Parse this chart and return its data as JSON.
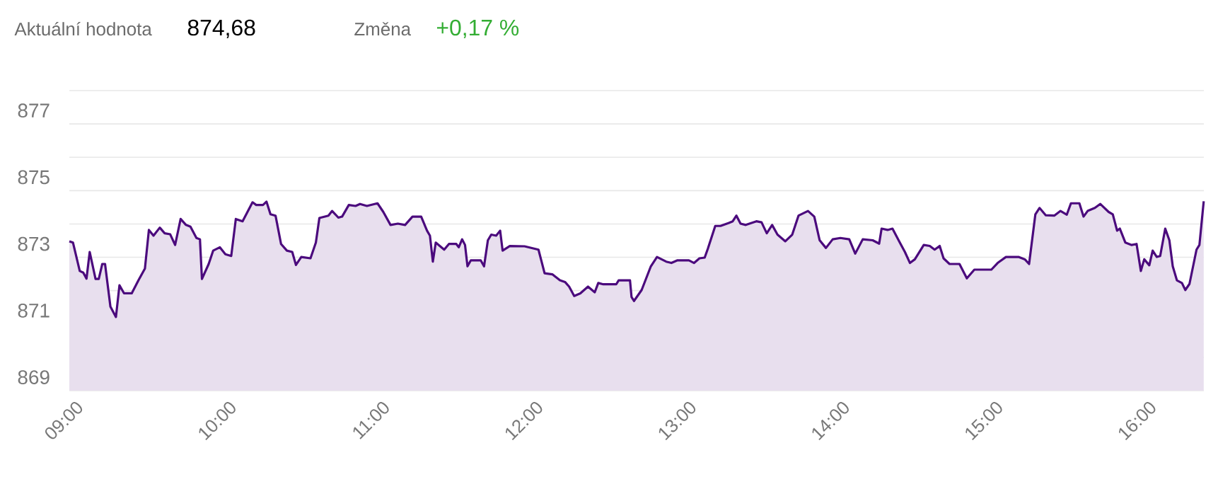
{
  "chart_data": {
    "type": "area",
    "annotations": [
      "Aktuální hodnota",
      "874,68",
      "Změna",
      "+0,17 %"
    ],
    "x": [
      9.0,
      9.024,
      9.068,
      9.091,
      9.112,
      9.133,
      9.171,
      9.192,
      9.215,
      9.233,
      9.268,
      9.304,
      9.327,
      9.357,
      9.407,
      9.451,
      9.493,
      9.519,
      9.549,
      9.59,
      9.622,
      9.658,
      9.69,
      9.726,
      9.761,
      9.79,
      9.829,
      9.852,
      9.865,
      9.909,
      9.938,
      9.982,
      10.018,
      10.056,
      10.086,
      10.13,
      10.195,
      10.219,
      10.263,
      10.286,
      10.312,
      10.345,
      10.381,
      10.419,
      10.454,
      10.478,
      10.513,
      10.573,
      10.608,
      10.631,
      10.69,
      10.714,
      10.755,
      10.779,
      10.823,
      10.867,
      10.896,
      10.941,
      11.01,
      11.048,
      11.095,
      11.143,
      11.19,
      11.238,
      11.295,
      11.333,
      11.352,
      11.371,
      11.39,
      11.445,
      11.476,
      11.524,
      11.54,
      11.562,
      11.581,
      11.597,
      11.619,
      11.683,
      11.705,
      11.73,
      11.752,
      11.784,
      11.81,
      11.826,
      11.873,
      11.969,
      12.06,
      12.1,
      12.15,
      12.2,
      12.233,
      12.26,
      12.293,
      12.333,
      12.383,
      12.427,
      12.45,
      12.483,
      12.567,
      12.583,
      12.657,
      12.667,
      12.683,
      12.733,
      12.793,
      12.833,
      12.893,
      12.927,
      12.967,
      13.041,
      13.075,
      13.11,
      13.144,
      13.165,
      13.213,
      13.247,
      13.302,
      13.327,
      13.351,
      13.378,
      13.412,
      13.481,
      13.515,
      13.549,
      13.584,
      13.619,
      13.67,
      13.715,
      13.756,
      13.818,
      13.859,
      13.894,
      13.935,
      13.979,
      14.029,
      14.087,
      14.126,
      14.175,
      14.24,
      14.282,
      14.298,
      14.337,
      14.369,
      14.417,
      14.45,
      14.483,
      14.515,
      14.573,
      14.612,
      14.644,
      14.677,
      14.702,
      14.741,
      14.806,
      14.854,
      14.903,
      15.014,
      15.055,
      15.109,
      15.191,
      15.232,
      15.26,
      15.301,
      15.328,
      15.369,
      15.424,
      15.465,
      15.506,
      15.533,
      15.588,
      15.615,
      15.642,
      15.689,
      15.724,
      15.779,
      15.806,
      15.834,
      15.852,
      15.888,
      15.929,
      15.961,
      15.989,
      16.011,
      16.044,
      16.066,
      16.093,
      16.115,
      16.148,
      16.175,
      16.197,
      16.224,
      16.257,
      16.279,
      16.306,
      16.352,
      16.371,
      16.399
    ],
    "series": [
      {
        "color": "#4b0a7d",
        "values": [
          873.48,
          873.44,
          872.59,
          872.54,
          872.36,
          873.16,
          872.35,
          872.35,
          872.8,
          872.8,
          871.52,
          871.21,
          872.16,
          871.92,
          871.92,
          872.31,
          872.66,
          873.82,
          873.65,
          873.89,
          873.72,
          873.69,
          873.37,
          874.15,
          873.97,
          873.92,
          873.58,
          873.54,
          872.35,
          872.8,
          873.2,
          873.3,
          873.09,
          873.04,
          874.15,
          874.08,
          874.65,
          874.57,
          874.57,
          874.67,
          874.29,
          874.25,
          873.4,
          873.2,
          873.16,
          872.77,
          873.01,
          872.97,
          873.44,
          874.18,
          874.25,
          874.39,
          874.19,
          874.22,
          874.57,
          874.54,
          874.6,
          874.54,
          874.62,
          874.36,
          873.97,
          874.01,
          873.97,
          874.22,
          874.22,
          873.8,
          873.65,
          872.87,
          873.44,
          873.23,
          873.4,
          873.4,
          873.3,
          873.54,
          873.37,
          872.73,
          872.91,
          872.91,
          872.73,
          873.51,
          873.68,
          873.65,
          873.8,
          873.2,
          873.34,
          873.33,
          873.23,
          872.52,
          872.49,
          872.31,
          872.26,
          872.12,
          871.84,
          871.92,
          872.12,
          871.95,
          872.23,
          872.19,
          872.19,
          872.31,
          872.31,
          871.81,
          871.69,
          872.02,
          872.73,
          873.01,
          872.87,
          872.83,
          872.91,
          872.91,
          872.83,
          872.97,
          872.99,
          873.26,
          873.94,
          873.94,
          874.03,
          874.08,
          874.25,
          874.01,
          873.97,
          874.08,
          874.05,
          873.72,
          873.97,
          873.68,
          873.48,
          873.68,
          874.25,
          874.39,
          874.22,
          873.51,
          873.28,
          873.54,
          873.58,
          873.54,
          873.11,
          873.54,
          873.51,
          873.41,
          873.86,
          873.82,
          873.86,
          873.44,
          873.16,
          872.83,
          872.94,
          873.37,
          873.34,
          873.23,
          873.34,
          872.97,
          872.8,
          872.8,
          872.37,
          872.63,
          872.63,
          872.83,
          873.01,
          873.01,
          872.94,
          872.8,
          874.29,
          874.48,
          874.26,
          874.25,
          874.39,
          874.28,
          874.62,
          874.62,
          874.22,
          874.39,
          874.48,
          874.6,
          874.36,
          874.29,
          873.8,
          873.86,
          873.44,
          873.37,
          873.4,
          872.59,
          872.94,
          872.76,
          873.2,
          873.01,
          873.04,
          873.86,
          873.51,
          872.73,
          872.31,
          872.23,
          872.02,
          872.2,
          873.23,
          873.37,
          874.68
        ]
      }
    ],
    "xlim": [
      9,
      16.4
    ],
    "xticks": [
      {
        "value": 9,
        "label": "09:00"
      },
      {
        "value": 10,
        "label": "10:00"
      },
      {
        "value": 11,
        "label": "11:00"
      },
      {
        "value": 12,
        "label": "12:00"
      },
      {
        "value": 13,
        "label": "13:00"
      },
      {
        "value": 14,
        "label": "14:00"
      },
      {
        "value": 15,
        "label": "15:00"
      },
      {
        "value": 16,
        "label": "16:00"
      }
    ],
    "ylim": [
      869,
      878
    ],
    "yticks": [
      869,
      {
        "value": 870,
        "label": null
      },
      871,
      {
        "value": 872,
        "label": null
      },
      873,
      {
        "value": 874,
        "label": null
      },
      875,
      {
        "value": 876,
        "label": null
      },
      877,
      {
        "value": 878,
        "label": null
      }
    ],
    "grid": "y"
  }
}
